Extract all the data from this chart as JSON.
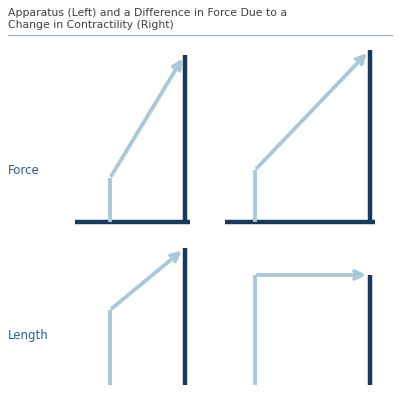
{
  "title_line1": "Apparatus (Left) and a Difference in Force Due to a",
  "title_line2": "Change in Contractility (Right)",
  "bg_color": "#ffffff",
  "light_blue": "#abc8d8",
  "dark_navy": "#1a3858",
  "label_color": "#2a6090",
  "title_color": "#404040",
  "force_label": "Force",
  "length_label": "Length",
  "title_fontsize": 7.8,
  "label_fontsize": 8.5
}
